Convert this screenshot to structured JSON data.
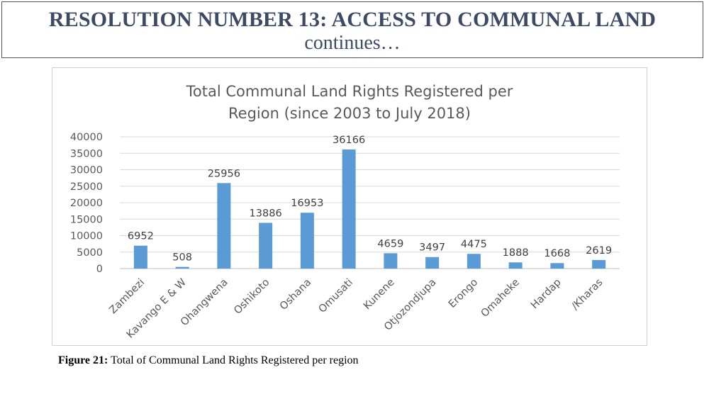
{
  "header": {
    "title": "RESOLUTION NUMBER 13: ACCESS TO COMMUNAL LAND",
    "subtitle": "continues…"
  },
  "caption": {
    "label": "Figure 21:",
    "text": " Total of Communal Land Rights Registered per region"
  },
  "chart_data": {
    "type": "bar",
    "title_lines": [
      "Total Communal Land Rights Registered per",
      "Region (since 2003 to July 2018)"
    ],
    "categories": [
      "Zambezi",
      "Kavango E & W",
      "Ohangwena",
      "Oshikoto",
      "Oshana",
      "Omusati",
      "Kunene",
      "Otjozondjupa",
      "Erongo",
      "Omaheke",
      "Hardap",
      "/Kharas"
    ],
    "values": [
      6952,
      508,
      25956,
      13886,
      16953,
      36166,
      4659,
      3497,
      4475,
      1888,
      1668,
      2619
    ],
    "data_labels": [
      "6952",
      "508",
      "25956",
      "13886",
      "16953",
      "36166",
      "4659",
      "3497",
      "4475",
      "1888",
      "1668",
      "2619"
    ],
    "y_ticks": [
      0,
      5000,
      10000,
      15000,
      20000,
      25000,
      30000,
      35000,
      40000
    ],
    "y_tick_labels": [
      "0",
      "5000",
      "10000",
      "15000",
      "20000",
      "25000",
      "30000",
      "35000",
      "40000"
    ],
    "ylim": [
      0,
      40000
    ],
    "grid": true,
    "legend": "none",
    "bar_color": "#5b9bd5",
    "grid_color": "#d9d9d9",
    "text_color": "#595959"
  }
}
